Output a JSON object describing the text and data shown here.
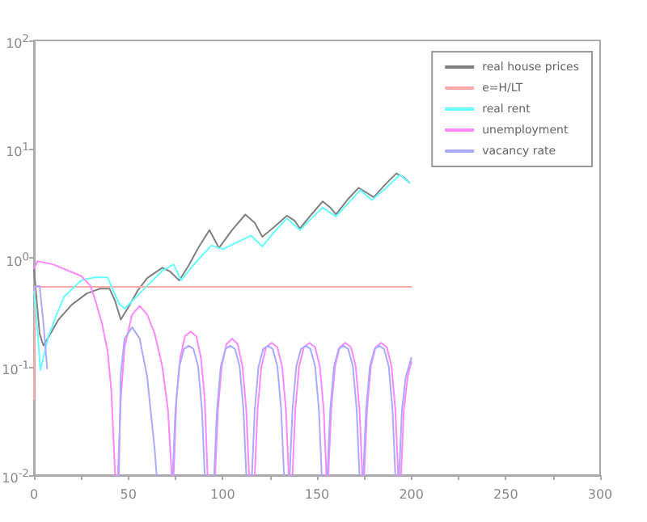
{
  "chart_data": {
    "type": "line",
    "legend": "top right",
    "grid": false,
    "marker": "none",
    "line_style": "solid",
    "log": "y",
    "xlim": [
      0,
      300
    ],
    "xticks": [
      0,
      {
        "value": 25,
        "label": null
      },
      50,
      {
        "value": 75,
        "label": null
      },
      100,
      {
        "value": 125,
        "label": null
      },
      150,
      {
        "value": 175,
        "label": null
      },
      200,
      {
        "value": 225,
        "label": null
      },
      250,
      {
        "value": 275,
        "label": null
      },
      300
    ],
    "ylim": [
      0.01,
      100
    ],
    "yticks": [
      {
        "value": 0.01,
        "label": "10$^{-2}$"
      },
      {
        "value": 0.1,
        "label": "10$^{-1}$"
      },
      {
        "value": 1,
        "label": "10$^{0}$"
      },
      {
        "value": 10,
        "label": "10$^{1}$"
      },
      {
        "value": 100,
        "label": "10$^{2}$"
      }
    ],
    "series": [
      {
        "name": "real house prices",
        "color": "#808080",
        "x": [
          0,
          1,
          3,
          5,
          8,
          13,
          20,
          28,
          35,
          40,
          43,
          46,
          50,
          55,
          60,
          68,
          72,
          77,
          82,
          87,
          93,
          98,
          105,
          112,
          117,
          121,
          127,
          134,
          138,
          141,
          147,
          153,
          157,
          160,
          166,
          172,
          176,
          180,
          186,
          192,
          196,
          199
        ],
        "values": [
          0.8,
          0.5,
          0.2,
          0.156,
          0.19,
          0.27,
          0.37,
          0.47,
          0.52,
          0.52,
          0.4,
          0.27,
          0.35,
          0.5,
          0.65,
          0.81,
          0.75,
          0.62,
          0.85,
          1.23,
          1.8,
          1.23,
          1.8,
          2.5,
          2.1,
          1.56,
          1.9,
          2.44,
          2.2,
          1.86,
          2.5,
          3.3,
          2.9,
          2.5,
          3.4,
          4.4,
          4.0,
          3.6,
          4.7,
          5.97,
          5.5,
          4.9
        ]
      },
      {
        "name": "e=H/LT",
        "color": "#ffaaaa",
        "x": [
          0,
          0.5,
          200
        ],
        "values": [
          0.05,
          0.54,
          0.54
        ]
      },
      {
        "name": "real rent",
        "color": "#66ffff",
        "x": [
          0,
          2,
          3.4,
          5,
          7.7,
          12,
          16,
          25,
          32,
          39,
          42,
          45,
          48,
          55,
          62,
          68,
          74,
          78,
          83,
          88,
          94,
          100,
          108,
          115,
          121,
          127,
          134,
          141,
          147,
          153,
          160,
          166,
          173,
          179,
          186,
          194,
          199
        ],
        "values": [
          0.5,
          0.2,
          0.093,
          0.12,
          0.19,
          0.3,
          0.44,
          0.62,
          0.66,
          0.66,
          0.5,
          0.38,
          0.34,
          0.45,
          0.6,
          0.76,
          0.87,
          0.62,
          0.8,
          1.0,
          1.3,
          1.2,
          1.4,
          1.6,
          1.27,
          1.7,
          2.3,
          1.8,
          2.3,
          2.9,
          2.4,
          3.1,
          4.2,
          3.4,
          4.3,
          5.8,
          4.9
        ]
      },
      {
        "name": "unemployment",
        "color": "#ff88ff",
        "x": [
          0,
          2,
          10,
          25,
          30,
          33,
          36,
          39,
          41,
          43,
          43.8,
          44.5,
          46,
          48,
          52,
          56,
          60,
          64,
          68,
          71,
          73,
          73.5,
          74,
          75.5,
          77.5,
          80,
          83,
          86,
          88.5,
          90.5,
          92,
          94,
          96,
          97.5,
          99.5,
          102,
          105,
          108,
          110.5,
          112.5,
          114,
          115.5,
          117,
          118.5,
          120.5,
          123,
          126,
          129,
          131.5,
          133.5,
          135,
          136,
          137,
          138.5,
          140.5,
          143,
          146,
          149,
          151.5,
          153.5,
          155,
          155.5,
          156,
          157.5,
          159.5,
          162,
          165,
          168,
          170.5,
          172.5,
          174,
          174.5,
          175,
          176.5,
          178.5,
          181,
          184,
          187,
          189.5,
          191.5,
          193,
          193.8,
          194.5,
          196,
          198,
          200
        ],
        "values": [
          0.8,
          0.93,
          0.87,
          0.68,
          0.55,
          0.38,
          0.25,
          0.14,
          0.06,
          0.01,
          null,
          0.01,
          0.05,
          0.15,
          0.3,
          0.36,
          0.3,
          0.2,
          0.1,
          0.04,
          0.01,
          null,
          0.01,
          0.05,
          0.12,
          0.19,
          0.21,
          0.19,
          0.12,
          0.05,
          0.01,
          null,
          0.01,
          0.04,
          0.1,
          0.16,
          0.18,
          0.16,
          0.1,
          0.04,
          0.01,
          null,
          0.01,
          0.04,
          0.1,
          0.15,
          0.165,
          0.15,
          0.1,
          0.04,
          0.01,
          null,
          0.01,
          0.04,
          0.1,
          0.15,
          0.165,
          0.15,
          0.1,
          0.04,
          0.01,
          null,
          0.01,
          0.04,
          0.1,
          0.15,
          0.165,
          0.15,
          0.1,
          0.04,
          0.01,
          null,
          0.01,
          0.04,
          0.1,
          0.15,
          0.165,
          0.15,
          0.1,
          0.04,
          0.01,
          null,
          0.01,
          0.04,
          0.08,
          0.11
        ]
      },
      {
        "name": "vacancy rate",
        "color": "#aaaaff",
        "x": [
          0,
          1,
          3,
          5,
          7,
          26,
          45,
          46,
          48,
          52,
          56,
          60,
          64,
          65,
          69,
          73.5,
          75,
          77,
          79.5,
          82,
          84.5,
          87,
          89,
          90.5,
          93,
          95.5,
          97,
          99,
          101.5,
          104,
          106.5,
          109,
          111,
          112.5,
          114,
          115.5,
          117,
          119,
          121.5,
          124,
          126.5,
          129,
          131,
          132.5,
          134,
          135.5,
          137,
          139,
          141.5,
          144,
          146.5,
          149,
          151,
          152.5,
          154,
          155.5,
          157,
          159,
          161.5,
          164,
          166.5,
          169,
          171,
          172.5,
          173.5,
          174.5,
          176,
          178,
          180.5,
          183,
          185.5,
          188,
          190,
          191.5,
          192.5,
          193.5,
          195,
          197,
          200
        ],
        "values": [
          0.5,
          0.55,
          0.55,
          0.25,
          0.096,
          null,
          0.01,
          0.085,
          0.18,
          0.23,
          0.18,
          0.08,
          0.017,
          0.01,
          null,
          0.01,
          0.04,
          0.1,
          0.145,
          0.155,
          0.145,
          0.1,
          0.04,
          0.01,
          null,
          0.01,
          0.04,
          0.1,
          0.145,
          0.155,
          0.145,
          0.1,
          0.04,
          0.01,
          null,
          0.01,
          0.04,
          0.1,
          0.145,
          0.155,
          0.145,
          0.1,
          0.04,
          0.01,
          null,
          0.01,
          0.04,
          0.1,
          0.145,
          0.155,
          0.145,
          0.1,
          0.04,
          0.01,
          null,
          0.01,
          0.04,
          0.1,
          0.145,
          0.155,
          0.145,
          0.1,
          0.04,
          0.01,
          null,
          0.01,
          0.04,
          0.1,
          0.145,
          0.155,
          0.145,
          0.1,
          0.04,
          0.01,
          null,
          0.01,
          0.04,
          0.08,
          0.12
        ]
      }
    ]
  }
}
